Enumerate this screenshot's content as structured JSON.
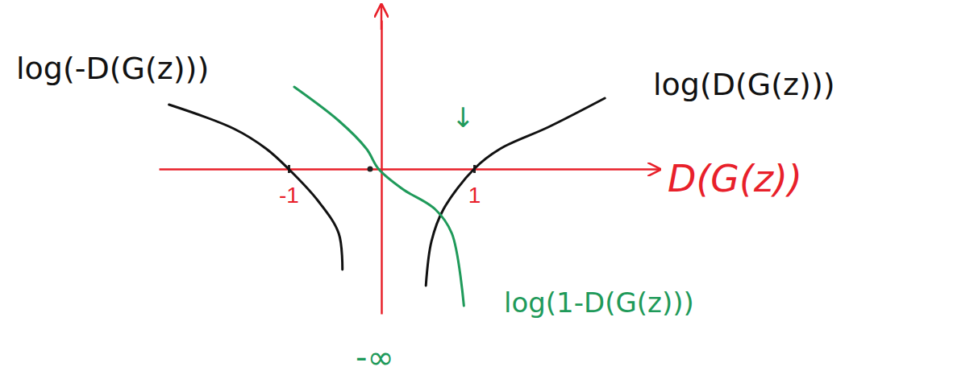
{
  "chart_data": {
    "type": "line",
    "xlabel": "D(G(z))",
    "xlim": [
      -2.4,
      3.0
    ],
    "ylim": [
      -1.8,
      1.85
    ],
    "xticks": [
      -1,
      1
    ],
    "yticks": [],
    "tick_labels": "x",
    "series": [
      {
        "name": "log(-D(G(z)))",
        "color": "#111111",
        "x": [
          -2.29,
          -1.59,
          -1.24,
          -1.0,
          -0.68,
          -0.46,
          -0.42
        ],
        "values": [
          0.8,
          0.5,
          0.25,
          0,
          -0.4,
          -0.8,
          -1.25
        ]
      },
      {
        "name": "log(D(G(z)))",
        "color": "#111111",
        "x": [
          0.48,
          0.54,
          0.67,
          1.0,
          1.28,
          1.8,
          2.41
        ],
        "values": [
          -1.45,
          -0.9,
          -0.5,
          0,
          0.25,
          0.52,
          0.88
        ]
      },
      {
        "name": "log(1-D(G(z)))",
        "color": "#1f9a5a",
        "x": [
          -0.94,
          -0.46,
          -0.16,
          -0.03,
          0.23,
          0.58,
          0.76,
          0.89
        ],
        "values": [
          1.02,
          0.6,
          0.25,
          0,
          -0.25,
          -0.5,
          -0.8,
          -1.7
        ]
      }
    ],
    "annotations": [
      {
        "text": "-∞",
        "color": "#1f9a5a"
      },
      {
        "text": "↓",
        "color": "#1f9a5a"
      }
    ]
  }
}
